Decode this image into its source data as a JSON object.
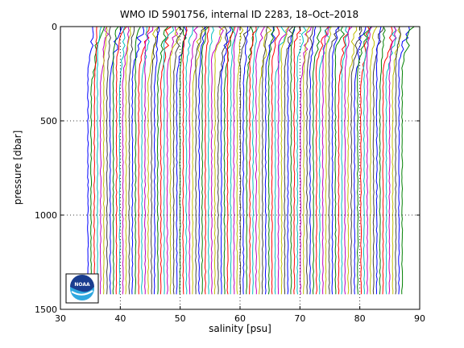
{
  "chart_data": {
    "type": "line",
    "title": "WMO ID 5901756, internal ID 2283, 18–Oct–2018",
    "xlabel": "salinity [psu]",
    "ylabel": "pressure [dbar]",
    "xlim": [
      30,
      90
    ],
    "ylim": [
      0,
      1500
    ],
    "y_reversed": true,
    "xticks": [
      30,
      40,
      50,
      60,
      70,
      80,
      90
    ],
    "yticks": [
      0,
      500,
      1000,
      1500
    ],
    "grid": true,
    "profile_count": 100,
    "first_offset": 34.6,
    "offset_step": 0.53,
    "max_pressure": 1420,
    "series_colors": [
      "#0000ff",
      "#008000",
      "#ff0000",
      "#00bfbf",
      "#bf00bf",
      "#bfbf00",
      "#404040"
    ]
  },
  "logo": {
    "text": "NOAA",
    "colors": {
      "dark": "#1a3d8f",
      "light": "#2fa8e0"
    }
  }
}
